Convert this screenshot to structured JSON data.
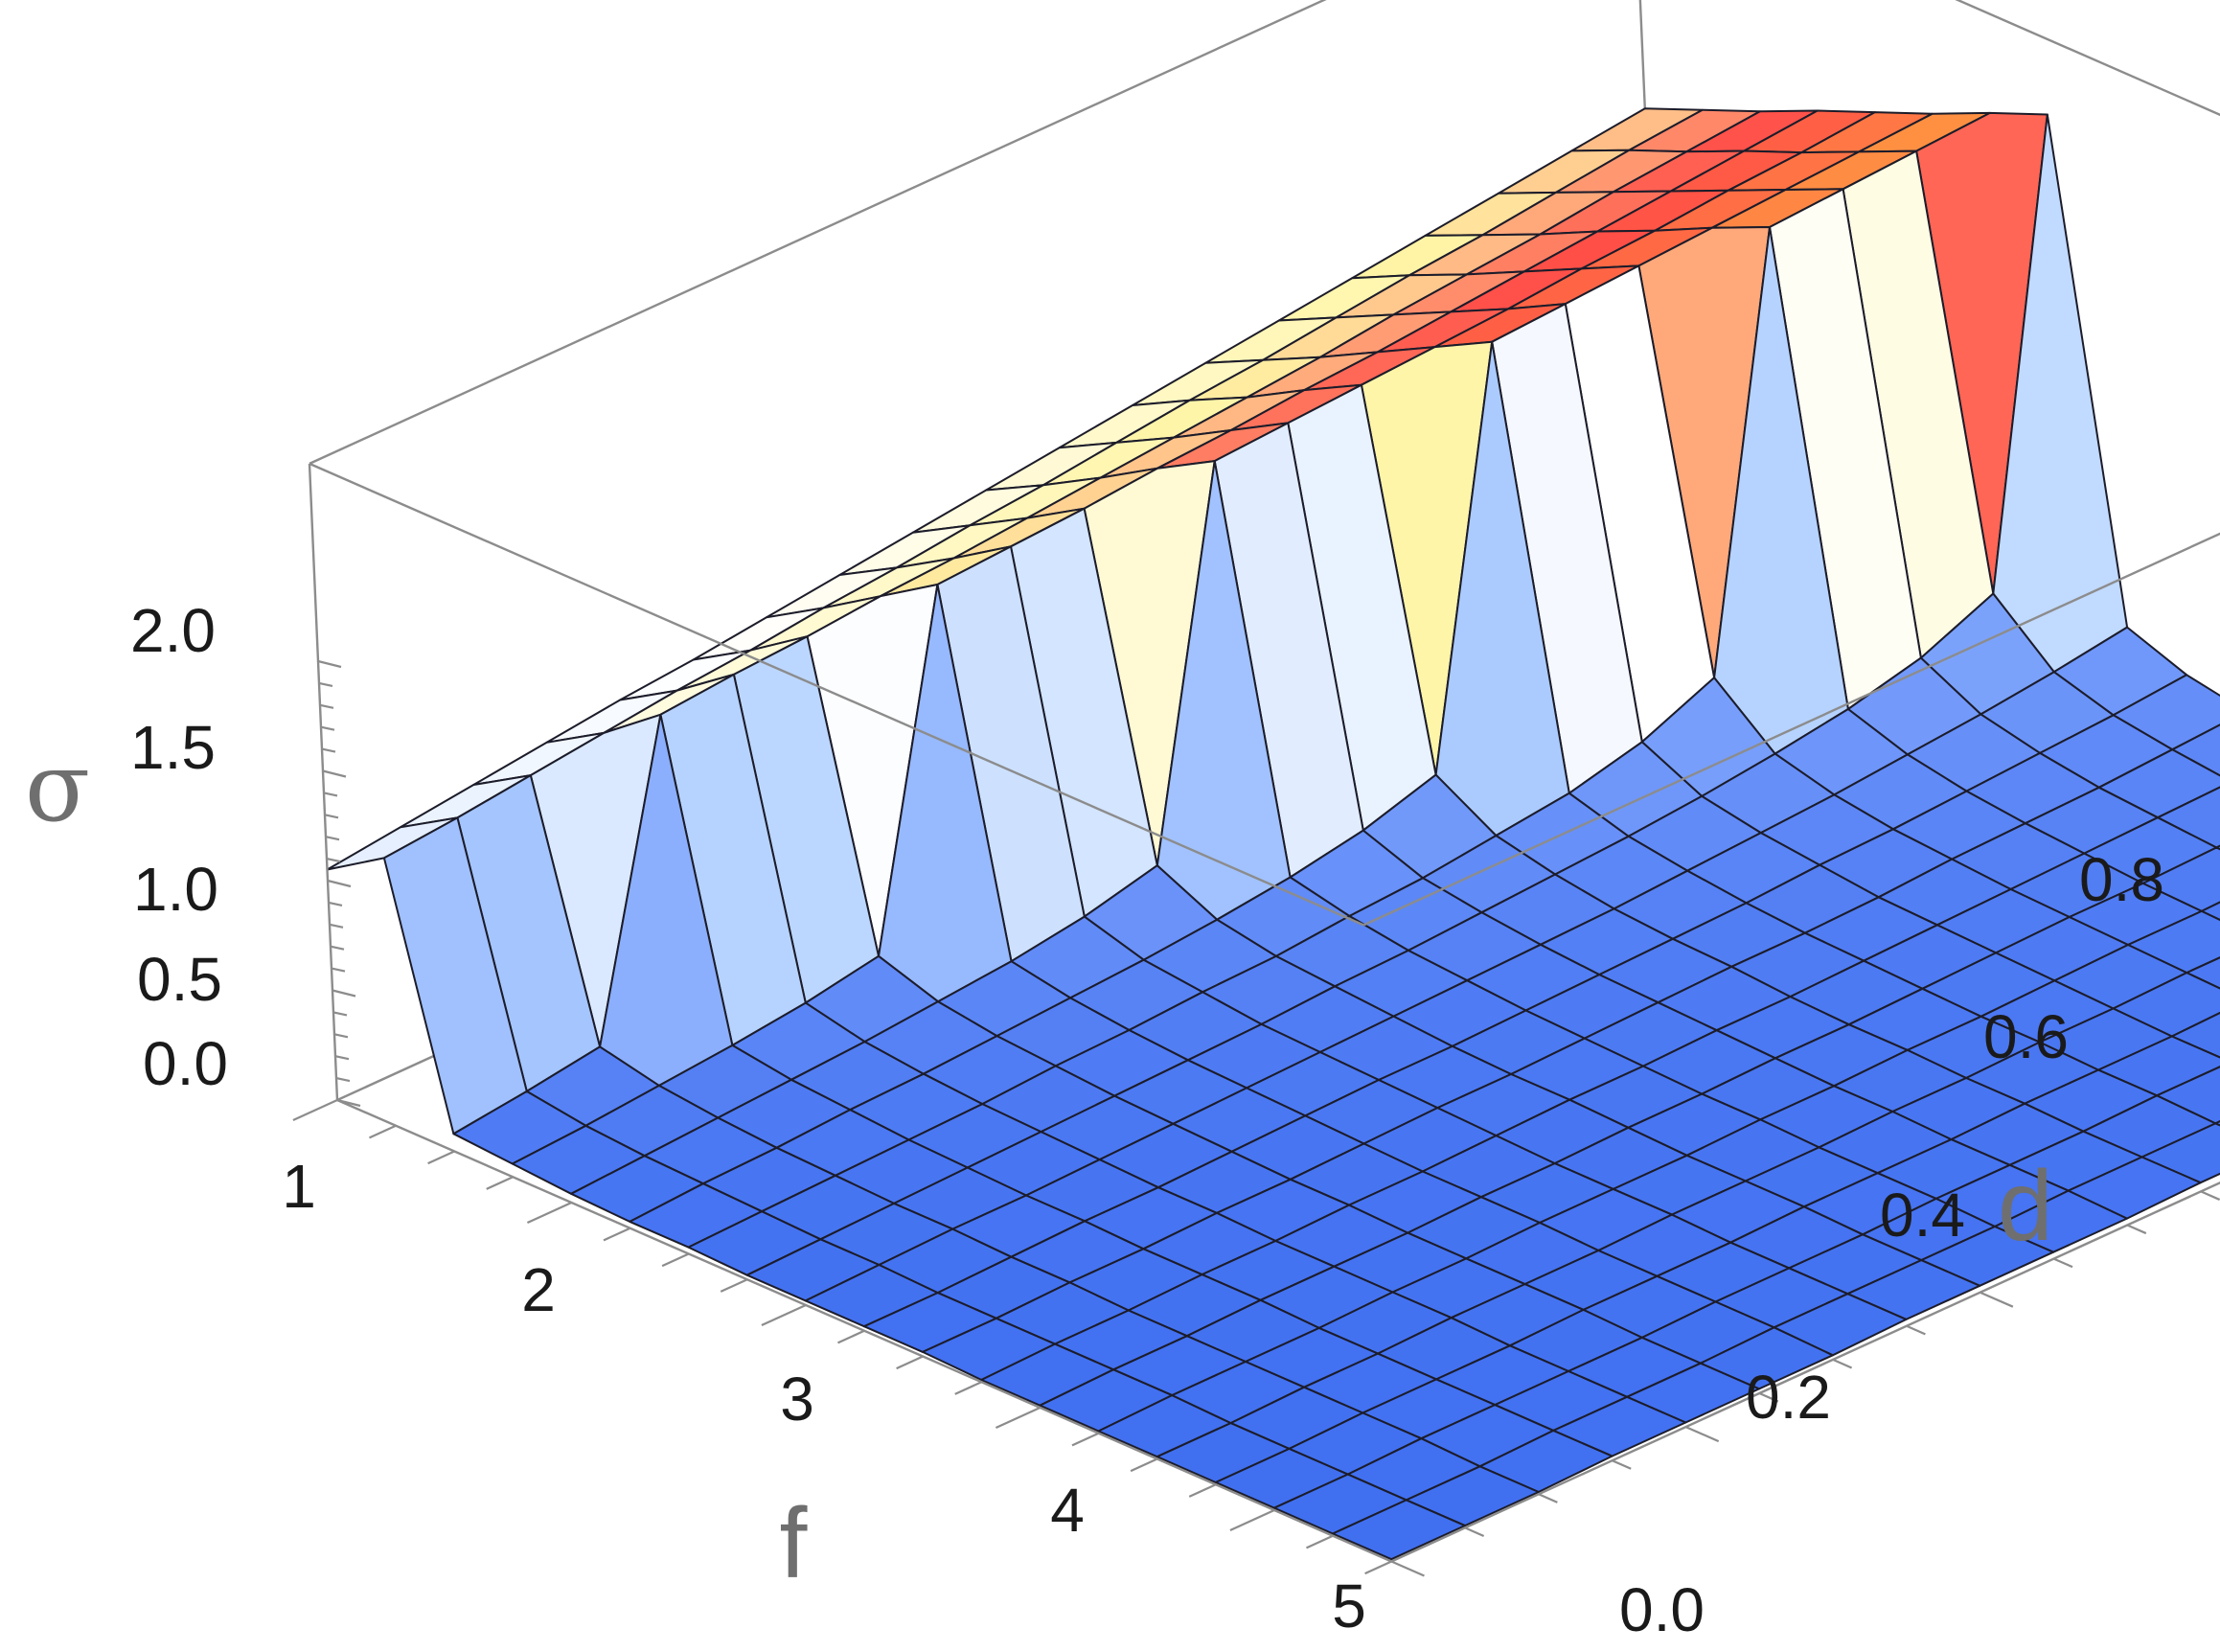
{
  "chart_data": {
    "type": "surface3d",
    "xlabel": "f",
    "ylabel": "d",
    "zlabel": "σ",
    "x_ticks": [
      "1",
      "2",
      "3",
      "4",
      "5"
    ],
    "y_ticks": [
      "0.0",
      "0.2",
      "0.4",
      "0.6",
      "0.8"
    ],
    "z_ticks": [
      "0.0",
      "0.5",
      "1.0",
      "1.5",
      "2.0"
    ],
    "xlim": [
      1,
      5.5
    ],
    "ylim": [
      0,
      0.9
    ],
    "zlim": [
      0,
      2
    ],
    "grid_x": [
      1.0,
      1.25,
      1.5,
      1.75,
      2.0,
      2.25,
      2.5,
      2.75,
      3.0,
      3.25,
      3.5,
      3.75,
      4.0,
      4.25,
      4.5,
      4.75,
      5.0,
      5.25,
      5.5
    ],
    "grid_y": [
      0.0,
      0.05,
      0.1,
      0.15,
      0.2,
      0.25,
      0.3,
      0.35,
      0.4,
      0.45,
      0.5,
      0.55,
      0.6,
      0.65,
      0.7,
      0.75,
      0.8,
      0.85,
      0.9
    ],
    "z_rows_by_y": [
      [
        1.05,
        1.22,
        0.08,
        0.06,
        0.04,
        0.03,
        0.03,
        0.02,
        0.02,
        0.02,
        0.02,
        0.01,
        0.01,
        0.01,
        0.01,
        0.01,
        0.01,
        0.01,
        0.01
      ],
      [
        1.09,
        1.25,
        0.12,
        0.08,
        0.06,
        0.05,
        0.04,
        0.03,
        0.03,
        0.02,
        0.02,
        0.02,
        0.02,
        0.02,
        0.01,
        0.01,
        0.01,
        0.01,
        0.01
      ],
      [
        1.13,
        1.29,
        0.17,
        0.11,
        0.08,
        0.06,
        0.05,
        0.04,
        0.04,
        0.03,
        0.03,
        0.02,
        0.02,
        0.02,
        0.02,
        0.02,
        0.02,
        0.01,
        0.01
      ],
      [
        1.17,
        1.33,
        1.53,
        0.14,
        0.1,
        0.08,
        0.06,
        0.05,
        0.04,
        0.04,
        0.03,
        0.03,
        0.03,
        0.02,
        0.02,
        0.02,
        0.02,
        0.02,
        0.02
      ],
      [
        1.21,
        1.37,
        1.56,
        0.18,
        0.12,
        0.09,
        0.07,
        0.06,
        0.05,
        0.04,
        0.04,
        0.03,
        0.03,
        0.03,
        0.03,
        0.02,
        0.02,
        0.02,
        0.02
      ],
      [
        1.24,
        1.4,
        1.58,
        0.24,
        0.15,
        0.11,
        0.09,
        0.07,
        0.06,
        0.05,
        0.04,
        0.04,
        0.03,
        0.03,
        0.03,
        0.03,
        0.02,
        0.02,
        0.02
      ],
      [
        1.28,
        1.44,
        1.61,
        1.78,
        0.18,
        0.13,
        0.1,
        0.08,
        0.07,
        0.06,
        0.05,
        0.04,
        0.04,
        0.04,
        0.03,
        0.03,
        0.03,
        0.03,
        0.02
      ],
      [
        1.32,
        1.47,
        1.63,
        1.8,
        0.23,
        0.15,
        0.12,
        0.09,
        0.08,
        0.07,
        0.06,
        0.05,
        0.04,
        0.04,
        0.04,
        0.03,
        0.03,
        0.03,
        0.03
      ],
      [
        1.36,
        1.51,
        1.66,
        1.82,
        0.31,
        0.18,
        0.13,
        0.11,
        0.09,
        0.07,
        0.06,
        0.06,
        0.05,
        0.04,
        0.04,
        0.04,
        0.03,
        0.03,
        0.03
      ],
      [
        1.4,
        1.54,
        1.69,
        1.85,
        2.0,
        0.22,
        0.16,
        0.12,
        0.1,
        0.08,
        0.07,
        0.06,
        0.05,
        0.05,
        0.04,
        0.04,
        0.04,
        0.03,
        0.03
      ],
      [
        1.44,
        1.58,
        1.72,
        1.87,
        2.02,
        0.28,
        0.18,
        0.14,
        0.11,
        0.09,
        0.08,
        0.07,
        0.06,
        0.05,
        0.05,
        0.04,
        0.04,
        0.04,
        0.03
      ],
      [
        1.48,
        1.62,
        1.75,
        1.9,
        2.04,
        0.38,
        0.22,
        0.16,
        0.12,
        0.1,
        0.09,
        0.07,
        0.06,
        0.06,
        0.05,
        0.05,
        0.04,
        0.04,
        0.04
      ],
      [
        1.52,
        1.65,
        1.78,
        1.92,
        2.06,
        2.2,
        0.26,
        0.18,
        0.14,
        0.11,
        0.09,
        0.08,
        0.07,
        0.06,
        0.06,
        0.05,
        0.05,
        0.04,
        0.04
      ],
      [
        1.56,
        1.69,
        1.82,
        1.95,
        2.08,
        2.22,
        0.34,
        0.21,
        0.16,
        0.13,
        0.1,
        0.09,
        0.08,
        0.07,
        0.06,
        0.05,
        0.05,
        0.05,
        0.04
      ],
      [
        1.6,
        1.73,
        1.85,
        1.98,
        2.11,
        2.24,
        0.48,
        0.25,
        0.18,
        0.14,
        0.12,
        0.1,
        0.09,
        0.08,
        0.07,
        0.06,
        0.05,
        0.05,
        0.05
      ],
      [
        1.64,
        1.76,
        1.88,
        2.01,
        2.13,
        2.26,
        2.38,
        0.3,
        0.21,
        0.16,
        0.13,
        0.11,
        0.09,
        0.08,
        0.07,
        0.07,
        0.06,
        0.05,
        0.05
      ],
      [
        1.68,
        1.8,
        1.92,
        2.04,
        2.16,
        2.28,
        2.4,
        0.38,
        0.24,
        0.18,
        0.14,
        0.12,
        0.1,
        0.09,
        0.08,
        0.07,
        0.06,
        0.06,
        0.05
      ],
      [
        1.72,
        1.84,
        1.95,
        2.07,
        2.18,
        2.3,
        2.42,
        0.52,
        0.28,
        0.2,
        0.16,
        0.13,
        0.11,
        0.1,
        0.09,
        0.08,
        0.07,
        0.06,
        0.06
      ],
      [
        1.76,
        1.87,
        1.98,
        2.1,
        2.21,
        2.32,
        2.44,
        2.55,
        0.33,
        0.23,
        0.18,
        0.14,
        0.12,
        0.11,
        0.09,
        0.08,
        0.07,
        0.07,
        0.06
      ]
    ],
    "colors": {
      "low": "#3e6ef0",
      "low_mid": "#a9c8ff",
      "mid": "#ffffff",
      "mid_high": "#fff5a6",
      "high": "#ff3f3f",
      "top": "#ff9340",
      "mesh": "#1c1c2a",
      "box": "#8c8c8c",
      "label": "#6f6f6f"
    },
    "grid": true,
    "legend": "none"
  }
}
